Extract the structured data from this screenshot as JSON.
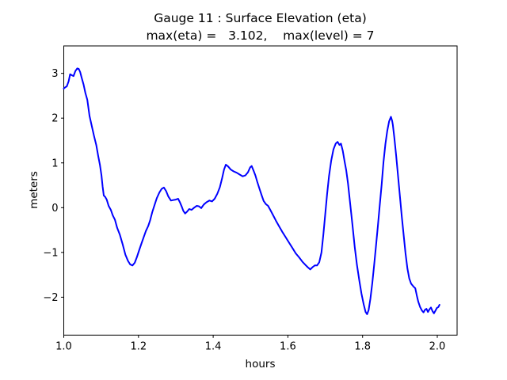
{
  "figure": {
    "background": "#ffffff",
    "frame_color": "#000000",
    "text_color": "#000000"
  },
  "chart_data": {
    "type": "line",
    "title": "Gauge 11 : Surface Elevation (eta)",
    "subtitle": "max(eta) =   3.102,    max(level) = 7",
    "xlabel": "hours",
    "ylabel": "meters",
    "max_eta": 3.102,
    "max_level": 7,
    "grid": false,
    "legend": null,
    "line_color": "#0000ff",
    "line_width": 2,
    "xlim": [
      1.0,
      2.053
    ],
    "ylim": [
      -2.847,
      3.613
    ],
    "x_ticks": [
      1.0,
      1.2,
      1.4,
      1.6,
      1.8,
      2.0
    ],
    "x_tick_labels": [
      "1.0",
      "1.2",
      "1.4",
      "1.6",
      "1.8",
      "2.0"
    ],
    "y_ticks": [
      -2,
      -1,
      0,
      1,
      2,
      3
    ],
    "y_tick_labels": [
      "−2",
      "−1",
      "0",
      "1",
      "2",
      "3"
    ],
    "series": [
      {
        "name": "eta",
        "points": [
          [
            1.0,
            2.66
          ],
          [
            1.004,
            2.69
          ],
          [
            1.008,
            2.71
          ],
          [
            1.013,
            2.82
          ],
          [
            1.017,
            2.98
          ],
          [
            1.021,
            2.96
          ],
          [
            1.026,
            2.94
          ],
          [
            1.031,
            3.05
          ],
          [
            1.036,
            3.11
          ],
          [
            1.04,
            3.1
          ],
          [
            1.044,
            3.03
          ],
          [
            1.048,
            2.9
          ],
          [
            1.053,
            2.75
          ],
          [
            1.058,
            2.56
          ],
          [
            1.063,
            2.41
          ],
          [
            1.069,
            2.05
          ],
          [
            1.075,
            1.82
          ],
          [
            1.081,
            1.6
          ],
          [
            1.087,
            1.4
          ],
          [
            1.092,
            1.16
          ],
          [
            1.097,
            0.95
          ],
          [
            1.101,
            0.72
          ],
          [
            1.104,
            0.48
          ],
          [
            1.107,
            0.27
          ],
          [
            1.111,
            0.24
          ],
          [
            1.115,
            0.18
          ],
          [
            1.12,
            0.04
          ],
          [
            1.126,
            -0.05
          ],
          [
            1.131,
            -0.17
          ],
          [
            1.137,
            -0.27
          ],
          [
            1.143,
            -0.45
          ],
          [
            1.15,
            -0.6
          ],
          [
            1.158,
            -0.83
          ],
          [
            1.165,
            -1.05
          ],
          [
            1.172,
            -1.19
          ],
          [
            1.178,
            -1.27
          ],
          [
            1.184,
            -1.29
          ],
          [
            1.19,
            -1.23
          ],
          [
            1.196,
            -1.1
          ],
          [
            1.202,
            -0.95
          ],
          [
            1.208,
            -0.8
          ],
          [
            1.214,
            -0.66
          ],
          [
            1.22,
            -0.52
          ],
          [
            1.226,
            -0.41
          ],
          [
            1.231,
            -0.29
          ],
          [
            1.237,
            -0.1
          ],
          [
            1.243,
            0.06
          ],
          [
            1.249,
            0.21
          ],
          [
            1.256,
            0.34
          ],
          [
            1.262,
            0.42
          ],
          [
            1.268,
            0.45
          ],
          [
            1.274,
            0.37
          ],
          [
            1.28,
            0.25
          ],
          [
            1.287,
            0.16
          ],
          [
            1.293,
            0.17
          ],
          [
            1.3,
            0.18
          ],
          [
            1.306,
            0.2
          ],
          [
            1.311,
            0.12
          ],
          [
            1.316,
            0.02
          ],
          [
            1.32,
            -0.07
          ],
          [
            1.325,
            -0.13
          ],
          [
            1.33,
            -0.09
          ],
          [
            1.336,
            -0.03
          ],
          [
            1.342,
            -0.05
          ],
          [
            1.349,
            0.0
          ],
          [
            1.356,
            0.04
          ],
          [
            1.362,
            0.03
          ],
          [
            1.368,
            -0.01
          ],
          [
            1.375,
            0.07
          ],
          [
            1.382,
            0.12
          ],
          [
            1.39,
            0.16
          ],
          [
            1.397,
            0.14
          ],
          [
            1.404,
            0.2
          ],
          [
            1.411,
            0.31
          ],
          [
            1.418,
            0.46
          ],
          [
            1.424,
            0.66
          ],
          [
            1.429,
            0.85
          ],
          [
            1.434,
            0.96
          ],
          [
            1.44,
            0.92
          ],
          [
            1.447,
            0.85
          ],
          [
            1.455,
            0.81
          ],
          [
            1.463,
            0.78
          ],
          [
            1.471,
            0.74
          ],
          [
            1.479,
            0.7
          ],
          [
            1.486,
            0.72
          ],
          [
            1.493,
            0.79
          ],
          [
            1.499,
            0.9
          ],
          [
            1.503,
            0.93
          ],
          [
            1.508,
            0.83
          ],
          [
            1.513,
            0.72
          ],
          [
            1.518,
            0.58
          ],
          [
            1.524,
            0.42
          ],
          [
            1.53,
            0.27
          ],
          [
            1.535,
            0.15
          ],
          [
            1.541,
            0.08
          ],
          [
            1.547,
            0.04
          ],
          [
            1.553,
            -0.05
          ],
          [
            1.56,
            -0.16
          ],
          [
            1.568,
            -0.29
          ],
          [
            1.576,
            -0.41
          ],
          [
            1.585,
            -0.54
          ],
          [
            1.594,
            -0.66
          ],
          [
            1.603,
            -0.78
          ],
          [
            1.612,
            -0.9
          ],
          [
            1.621,
            -1.02
          ],
          [
            1.63,
            -1.11
          ],
          [
            1.639,
            -1.21
          ],
          [
            1.647,
            -1.28
          ],
          [
            1.653,
            -1.33
          ],
          [
            1.66,
            -1.38
          ],
          [
            1.666,
            -1.33
          ],
          [
            1.672,
            -1.29
          ],
          [
            1.678,
            -1.29
          ],
          [
            1.684,
            -1.22
          ],
          [
            1.69,
            -1.0
          ],
          [
            1.695,
            -0.6
          ],
          [
            1.7,
            -0.14
          ],
          [
            1.705,
            0.3
          ],
          [
            1.71,
            0.7
          ],
          [
            1.716,
            1.05
          ],
          [
            1.722,
            1.3
          ],
          [
            1.728,
            1.43
          ],
          [
            1.733,
            1.47
          ],
          [
            1.738,
            1.4
          ],
          [
            1.742,
            1.43
          ],
          [
            1.747,
            1.27
          ],
          [
            1.752,
            1.02
          ],
          [
            1.756,
            0.84
          ],
          [
            1.761,
            0.54
          ],
          [
            1.767,
            0.08
          ],
          [
            1.773,
            -0.4
          ],
          [
            1.779,
            -0.88
          ],
          [
            1.785,
            -1.28
          ],
          [
            1.791,
            -1.62
          ],
          [
            1.797,
            -1.92
          ],
          [
            1.803,
            -2.16
          ],
          [
            1.808,
            -2.33
          ],
          [
            1.812,
            -2.38
          ],
          [
            1.816,
            -2.29
          ],
          [
            1.821,
            -2.03
          ],
          [
            1.826,
            -1.68
          ],
          [
            1.831,
            -1.28
          ],
          [
            1.836,
            -0.84
          ],
          [
            1.841,
            -0.41
          ],
          [
            1.846,
            0.06
          ],
          [
            1.851,
            0.52
          ],
          [
            1.856,
            1.02
          ],
          [
            1.861,
            1.42
          ],
          [
            1.866,
            1.71
          ],
          [
            1.871,
            1.93
          ],
          [
            1.876,
            2.03
          ],
          [
            1.879,
            1.94
          ],
          [
            1.881,
            1.85
          ],
          [
            1.885,
            1.56
          ],
          [
            1.89,
            1.16
          ],
          [
            1.895,
            0.7
          ],
          [
            1.9,
            0.24
          ],
          [
            1.905,
            -0.2
          ],
          [
            1.91,
            -0.62
          ],
          [
            1.915,
            -1.02
          ],
          [
            1.92,
            -1.36
          ],
          [
            1.925,
            -1.58
          ],
          [
            1.93,
            -1.7
          ],
          [
            1.936,
            -1.76
          ],
          [
            1.941,
            -1.8
          ],
          [
            1.945,
            -1.96
          ],
          [
            1.949,
            -2.1
          ],
          [
            1.954,
            -2.22
          ],
          [
            1.959,
            -2.3
          ],
          [
            1.963,
            -2.34
          ],
          [
            1.967,
            -2.28
          ],
          [
            1.971,
            -2.26
          ],
          [
            1.975,
            -2.33
          ],
          [
            1.979,
            -2.27
          ],
          [
            1.983,
            -2.23
          ],
          [
            1.987,
            -2.31
          ],
          [
            1.991,
            -2.36
          ],
          [
            1.995,
            -2.3
          ],
          [
            1.999,
            -2.24
          ],
          [
            2.003,
            -2.22
          ],
          [
            2.006,
            -2.17
          ]
        ]
      }
    ]
  }
}
